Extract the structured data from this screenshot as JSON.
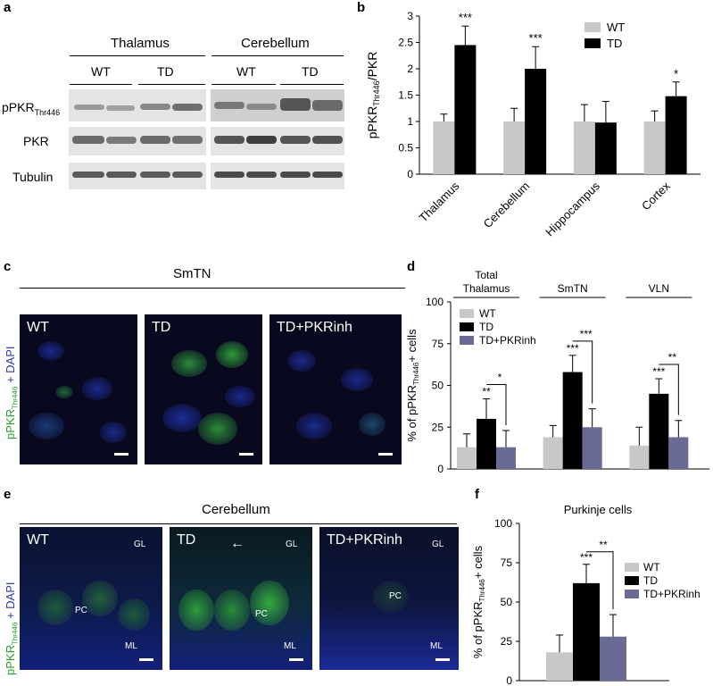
{
  "panels": {
    "a": {
      "label": "a",
      "regions": [
        "Thalamus",
        "Cerebellum"
      ],
      "groups": [
        "WT",
        "TD",
        "WT",
        "TD"
      ],
      "rows": [
        "pPKR",
        "Thr446",
        "PKR",
        "Tubulin"
      ]
    },
    "b": {
      "label": "b",
      "ylabel_main": "pPKR",
      "ylabel_sub": "Thr446",
      "ylabel_tail": "/PKR",
      "legend": [
        "WT",
        "TD"
      ],
      "colors": {
        "WT": "#c8c8c8",
        "TD": "#000000"
      }
    },
    "c": {
      "label": "c",
      "region": "SmTN",
      "images": [
        "WT",
        "TD",
        "TD+PKRinh"
      ],
      "ylabel_green": "pPKR",
      "ylabel_sub": "Thr446",
      "ylabel_blue": " + DAPI"
    },
    "d": {
      "label": "d",
      "group_titles": [
        "Total\nThalamus",
        "SmTN",
        "VLN"
      ],
      "ylabel_pre": "% of pPKR",
      "ylabel_sub": "Thr446",
      "ylabel_post": "+ cells",
      "legend": [
        "WT",
        "TD",
        "TD+PKRinh"
      ],
      "colors": {
        "WT": "#c8c8c8",
        "TD": "#000000",
        "TD+PKRinh": "#6a6a96"
      }
    },
    "e": {
      "label": "e",
      "region": "Cerebellum",
      "images": [
        "WT",
        "TD",
        "TD+PKRinh"
      ],
      "tags": [
        "GL",
        "PC",
        "ML"
      ],
      "arrow": "←",
      "ylabel_green": "pPKR",
      "ylabel_sub": "Thr446",
      "ylabel_blue": " + DAPI"
    },
    "f": {
      "label": "f",
      "title": "Purkinje cells",
      "ylabel_pre": "% of pPKR",
      "ylabel_sub": "Thr446",
      "ylabel_post": "+ cells",
      "legend": [
        "WT",
        "TD",
        "TD+PKRinh"
      ],
      "colors": {
        "WT": "#c8c8c8",
        "TD": "#000000",
        "TD+PKRinh": "#6a6a96"
      }
    }
  },
  "chart_data": [
    {
      "type": "bar",
      "panel": "b",
      "categories": [
        "Thalamus",
        "Cerebellum",
        "Hippocampus",
        "Cortex"
      ],
      "series": [
        {
          "name": "WT",
          "values": [
            1.0,
            1.0,
            1.0,
            1.0
          ],
          "errors": [
            0.14,
            0.25,
            0.32,
            0.2
          ]
        },
        {
          "name": "TD",
          "values": [
            2.45,
            2.0,
            0.98,
            1.48
          ],
          "errors": [
            0.36,
            0.42,
            0.4,
            0.27
          ]
        }
      ],
      "significance": [
        "***",
        "***",
        "",
        "*"
      ],
      "ylim": [
        0,
        3
      ],
      "yticks": [
        "0",
        "0.5",
        "1",
        "1.5",
        "2",
        "2.5",
        "3"
      ]
    },
    {
      "type": "bar",
      "panel": "d",
      "categories": [
        "Total Thalamus",
        "SmTN",
        "VLN"
      ],
      "series": [
        {
          "name": "WT",
          "values": [
            13,
            19,
            14
          ],
          "errors": [
            8,
            7,
            11
          ]
        },
        {
          "name": "TD",
          "values": [
            30,
            58,
            45
          ],
          "errors": [
            12,
            10,
            9
          ]
        },
        {
          "name": "TD+PKRinh",
          "values": [
            13,
            25,
            19
          ],
          "errors": [
            10,
            11,
            10
          ]
        }
      ],
      "significance_td": [
        "**",
        "***",
        "***"
      ],
      "significance_bracket": [
        "*",
        "***",
        "**"
      ],
      "ylim": [
        0,
        100
      ],
      "yticks": [
        "0",
        "25",
        "50",
        "75",
        "100"
      ]
    },
    {
      "type": "bar",
      "panel": "f",
      "categories": [
        "Purkinje cells"
      ],
      "series": [
        {
          "name": "WT",
          "values": [
            18
          ],
          "errors": [
            11
          ]
        },
        {
          "name": "TD",
          "values": [
            62
          ],
          "errors": [
            12
          ]
        },
        {
          "name": "TD+PKRinh",
          "values": [
            28
          ],
          "errors": [
            14
          ]
        }
      ],
      "significance_td": [
        "***"
      ],
      "significance_bracket": [
        "**"
      ],
      "ylim": [
        0,
        100
      ],
      "yticks": [
        "0",
        "25",
        "50",
        "75",
        "100"
      ]
    }
  ]
}
